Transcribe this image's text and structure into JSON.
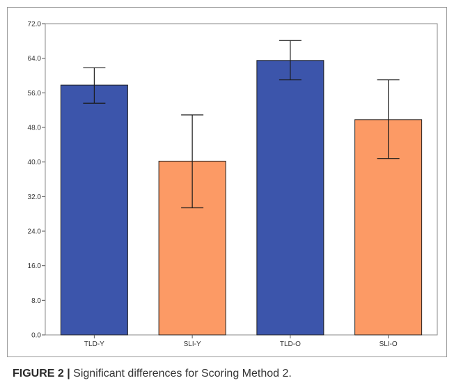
{
  "chart_data": {
    "type": "bar",
    "categories": [
      "TLD-Y",
      "SLI-Y",
      "TLD-O",
      "SLI-O"
    ],
    "values": [
      57.8,
      40.2,
      63.5,
      49.8
    ],
    "error_low": [
      53.6,
      29.4,
      59.0,
      40.8
    ],
    "error_high": [
      61.8,
      50.9,
      68.1,
      59.0
    ],
    "bar_colors": [
      "#3c55ab",
      "#fc9a65",
      "#3c55ab",
      "#fc9a65"
    ],
    "ylim": [
      0,
      72
    ],
    "yticks": [
      "0.0",
      "8.0",
      "16.0",
      "24.0",
      "32.0",
      "40.0",
      "48.0",
      "56.0",
      "64.0",
      "72.0"
    ],
    "grid": false,
    "title": "",
    "xlabel": "",
    "ylabel": ""
  },
  "caption": {
    "label": "FIGURE 2 |",
    "text": " Significant differences for Scoring Method 2."
  }
}
